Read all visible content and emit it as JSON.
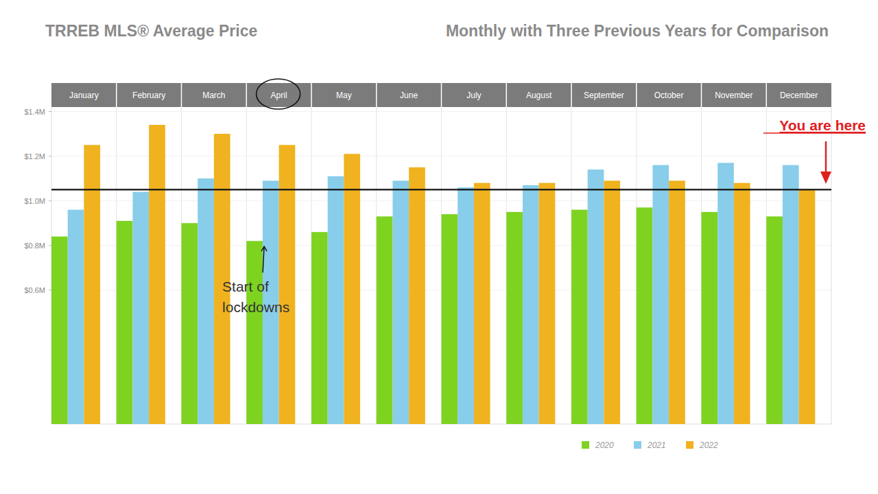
{
  "chart_data": {
    "type": "bar",
    "title": "TRREB MLS® Average Price",
    "subtitle": "Monthly with Three Previous Years for Comparison",
    "categories": [
      "January",
      "February",
      "March",
      "April",
      "May",
      "June",
      "July",
      "August",
      "September",
      "October",
      "November",
      "December"
    ],
    "series": [
      {
        "name": "2020",
        "color": "#7ed321",
        "values": [
          0.84,
          0.91,
          0.9,
          0.82,
          0.86,
          0.93,
          0.94,
          0.95,
          0.96,
          0.97,
          0.95,
          0.93
        ]
      },
      {
        "name": "2021",
        "color": "#88cdea",
        "values": [
          0.96,
          1.04,
          1.1,
          1.09,
          1.11,
          1.09,
          1.06,
          1.07,
          1.14,
          1.16,
          1.17,
          1.16
        ]
      },
      {
        "name": "2022",
        "color": "#f0b21e",
        "values": [
          1.25,
          1.34,
          1.3,
          1.25,
          1.21,
          1.15,
          1.08,
          1.08,
          1.09,
          1.09,
          1.08,
          1.05
        ]
      }
    ],
    "ylim": [
      0,
      1.42
    ],
    "yticks": [
      {
        "value": 0.6,
        "label": "$0.6M"
      },
      {
        "value": 0.8,
        "label": "$0.8M"
      },
      {
        "value": 1.0,
        "label": "$1.0M"
      },
      {
        "value": 1.2,
        "label": "$1.2M"
      },
      {
        "value": 1.4,
        "label": "$1.4M"
      }
    ],
    "grid": true,
    "legend": "bottom-right",
    "reference_line": 1.05,
    "annotations": [
      {
        "text": "Start of\nlockdowns",
        "category": "April",
        "series": "2020"
      },
      {
        "text": "You are here",
        "category": "December"
      }
    ]
  }
}
